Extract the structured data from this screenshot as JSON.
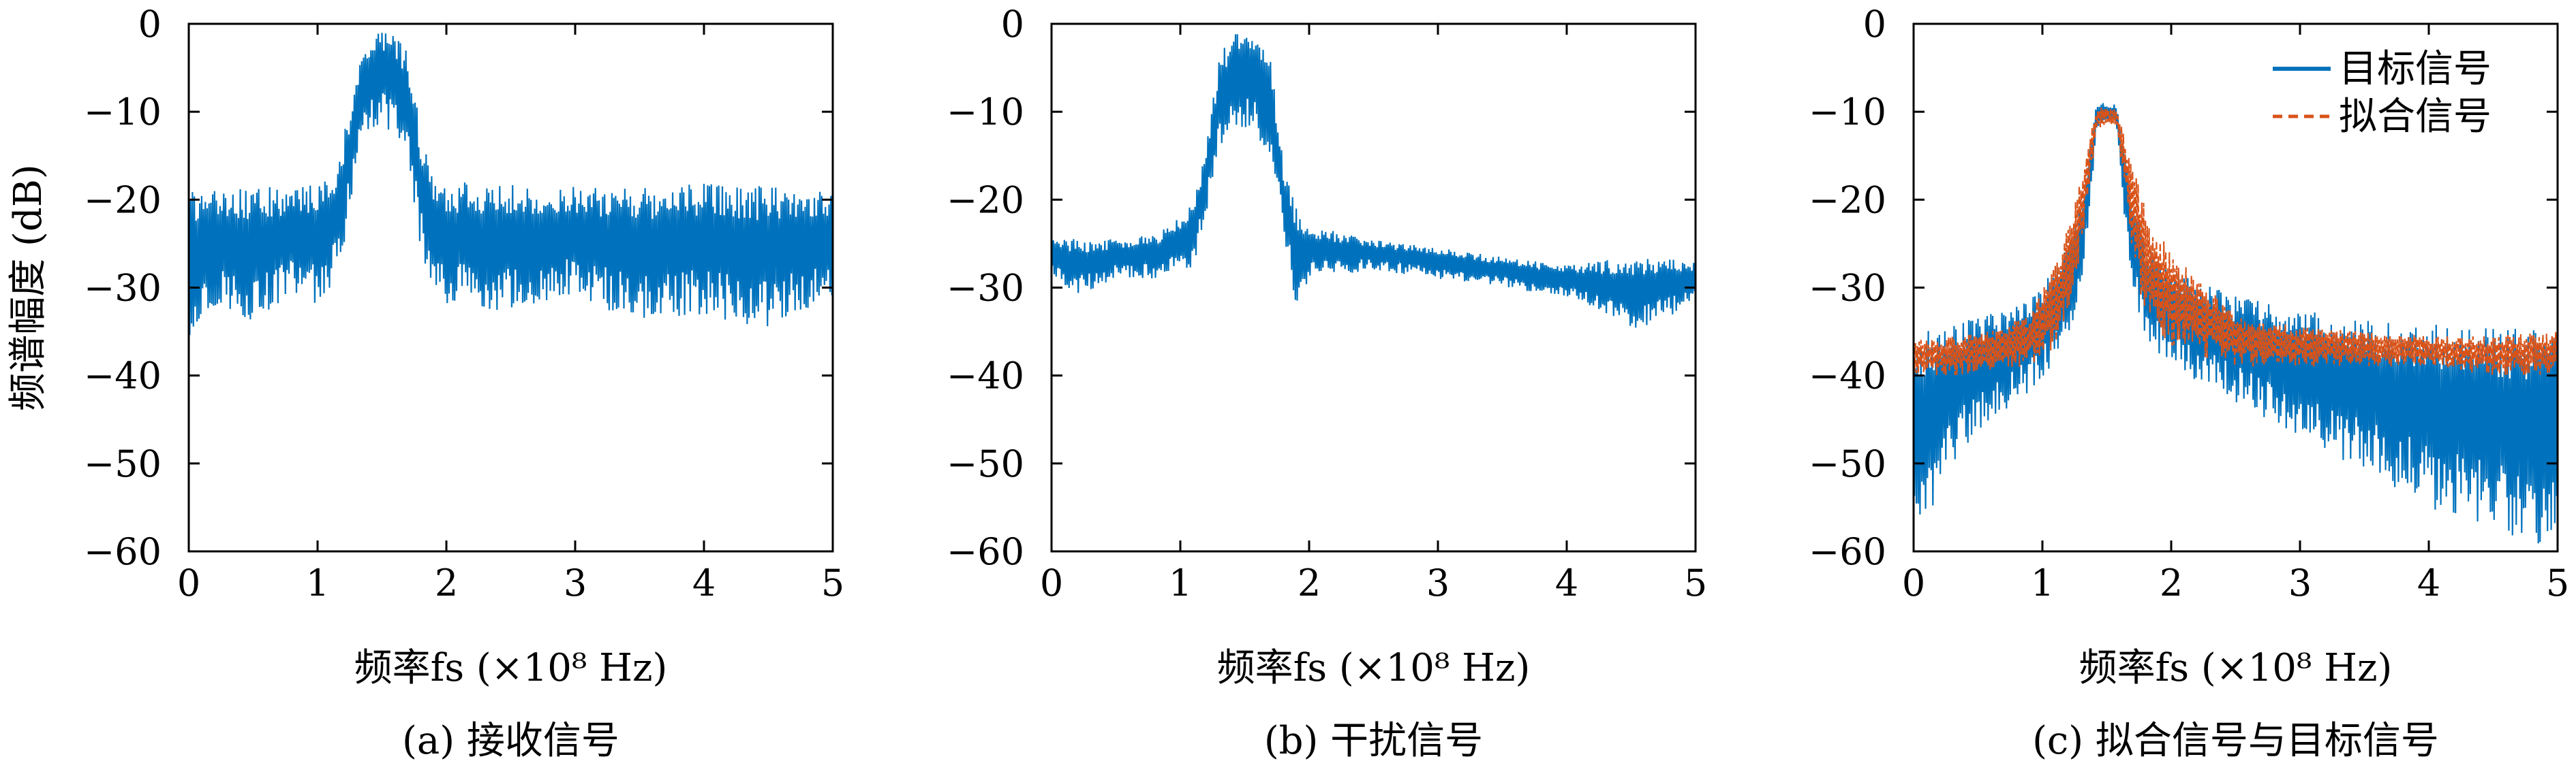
{
  "figure": {
    "captions": [
      "(a) 接收信号",
      "(b) 干扰信号",
      "(c) 拟合信号与目标信号"
    ]
  },
  "chart_data": [
    {
      "type": "line",
      "caption": "(a) 接收信号",
      "xlabel": "频率fs (×10⁸ Hz)",
      "ylabel": "频谱幅度 (dB)",
      "xlim": [
        0,
        5
      ],
      "ylim": [
        -60,
        0
      ],
      "xticks": [
        "0",
        "1",
        "2",
        "3",
        "4",
        "5"
      ],
      "yticks": [
        "0",
        "-10",
        "-20",
        "-30",
        "-40",
        "-50",
        "-60"
      ],
      "grid": false,
      "series": [
        {
          "color": "#0072BD",
          "style": "solid",
          "envelope": {
            "x": [
              0,
              0.2,
              0.5,
              0.8,
              1.0,
              1.1,
              1.2,
              1.3,
              1.4,
              1.5,
              1.6,
              1.7,
              1.8,
              1.9,
              2.0,
              2.5,
              3.0,
              3.5,
              4.0,
              4.5,
              5.0
            ],
            "upper": [
              -19,
              -19,
              -18.5,
              -18.5,
              -18,
              -17.5,
              -13,
              -5,
              -1.5,
              0,
              -1.5,
              -3,
              -12,
              -17.5,
              -18,
              -18,
              -18.5,
              -18.5,
              -18,
              -18.5,
              -19
            ],
            "lower": [
              -36,
              -32,
              -34,
              -31,
              -32,
              -30,
              -26,
              -16,
              -12,
              -12,
              -13,
              -16,
              -26,
              -30,
              -32,
              -33,
              -31,
              -34,
              -33,
              -35,
              -31
            ]
          }
        }
      ]
    },
    {
      "type": "line",
      "caption": "(b) 干扰信号",
      "xlabel": "频率fs (×10⁸ Hz)",
      "ylabel": "",
      "xlim": [
        0,
        5
      ],
      "ylim": [
        -60,
        0
      ],
      "xticks": [
        "0",
        "1",
        "2",
        "3",
        "4",
        "5"
      ],
      "yticks": [
        "0",
        "-10",
        "-20",
        "-30",
        "-40",
        "-50",
        "-60"
      ],
      "grid": false,
      "series": [
        {
          "color": "#0072BD",
          "style": "solid",
          "envelope": {
            "x": [
              0,
              0.2,
              0.5,
              0.8,
              1.0,
              1.1,
              1.2,
              1.3,
              1.4,
              1.5,
              1.6,
              1.7,
              1.8,
              1.9,
              2.0,
              2.5,
              3.0,
              3.5,
              4.0,
              4.5,
              5.0
            ],
            "upper": [
              -24,
              -24.5,
              -24.5,
              -24,
              -22,
              -20,
              -14,
              -4,
              -1,
              0,
              -1.5,
              -4,
              -16,
              -21,
              -23,
              -24.5,
              -25.5,
              -26.5,
              -27.5,
              -26.5,
              -27
            ],
            "lower": [
              -29,
              -31,
              -29,
              -29,
              -28,
              -28,
              -22,
              -14,
              -12,
              -12,
              -13,
              -15,
              -24,
              -33,
              -29,
              -28,
              -29,
              -30,
              -31,
              -35,
              -32
            ]
          }
        }
      ]
    },
    {
      "type": "line",
      "caption": "(c) 拟合信号与目标信号",
      "xlabel": "频率fs (×10⁸ Hz)",
      "ylabel": "",
      "xlim": [
        0,
        5
      ],
      "ylim": [
        -60,
        0
      ],
      "xticks": [
        "0",
        "1",
        "2",
        "3",
        "4",
        "5"
      ],
      "yticks": [
        "0",
        "-10",
        "-20",
        "-30",
        "-40",
        "-50",
        "-60"
      ],
      "grid": false,
      "legend": "top-right",
      "series": [
        {
          "name": "目标信号",
          "color": "#0072BD",
          "style": "solid",
          "envelope": {
            "x": [
              0,
              0.3,
              0.6,
              0.9,
              1.1,
              1.2,
              1.3,
              1.38,
              1.42,
              1.5,
              1.58,
              1.62,
              1.7,
              1.8,
              2.0,
              2.5,
              3.0,
              3.5,
              4.0,
              4.5,
              5.0
            ],
            "upper": [
              -35,
              -34,
              -33,
              -31,
              -28,
              -25,
              -20,
              -13,
              -9,
              -9,
              -9,
              -13,
              -20,
              -25,
              -28,
              -31,
              -32.5,
              -33.5,
              -34,
              -34.5,
              -34.5
            ],
            "lower": [
              -60,
              -50,
              -45,
              -42,
              -39,
              -36,
              -30,
              -20,
              -12,
              -11,
              -12,
              -20,
              -30,
              -36,
              -39,
              -43,
              -47,
              -51,
              -55,
              -58,
              -61
            ]
          }
        },
        {
          "name": "拟合信号",
          "color": "#D95319",
          "style": "dashed",
          "envelope": {
            "x": [
              0,
              0.3,
              0.6,
              0.9,
              1.1,
              1.2,
              1.3,
              1.38,
              1.42,
              1.5,
              1.58,
              1.62,
              1.7,
              1.8,
              2.0,
              2.5,
              3.0,
              3.5,
              4.0,
              4.5,
              5.0
            ],
            "upper": [
              -36,
              -35.5,
              -35,
              -33,
              -27,
              -23,
              -17,
              -12,
              -9.5,
              -9.5,
              -9.5,
              -12,
              -16,
              -21,
              -26,
              -33,
              -34.5,
              -35,
              -35.5,
              -35.5,
              -35
            ],
            "lower": [
              -40,
              -40,
              -39.5,
              -39,
              -37,
              -34,
              -26,
              -17,
              -12,
              -11.5,
              -12,
              -17,
              -26,
              -34,
              -37,
              -39,
              -39,
              -39,
              -39,
              -40,
              -40
            ]
          }
        }
      ]
    }
  ]
}
